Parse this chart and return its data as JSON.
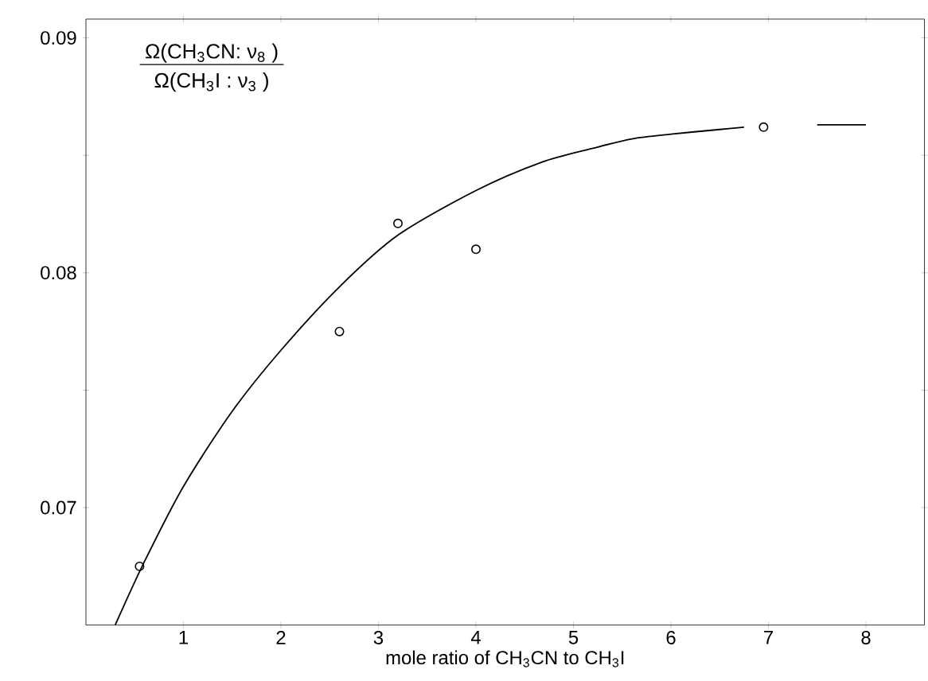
{
  "chart_data": {
    "type": "scatter",
    "xlabel": "mole ratio of CH$_{3}$CN to CH$_{3}$I",
    "annotations": [
      "Ω(CH$_{3}$CN: ν$_{8}$ )",
      "Ω(CH$_{3}$I : ν$_{3}$ )"
    ],
    "xlim": [
      0,
      8.6
    ],
    "ylim": [
      0.065,
      0.0908
    ],
    "xticks": [
      1,
      2,
      3,
      4,
      5,
      6,
      7,
      8
    ],
    "yticks": [
      0.07,
      {
        "value": 0.075,
        "label": null
      },
      0.08,
      {
        "value": 0.085,
        "label": null
      },
      0.09
    ],
    "series": [
      {
        "color": "#000000",
        "marker": "circle",
        "x": [
          0.55,
          2.6,
          3.2,
          4.0,
          6.95
        ],
        "values": [
          0.0675,
          0.0775,
          0.0821,
          0.081,
          0.0862
        ]
      },
      {
        "type": "line",
        "color": "#000000",
        "marker": "none",
        "x": [
          0.3,
          0.6,
          1.0,
          1.5,
          2.0,
          2.6,
          3.2,
          4.0,
          4.67,
          5.2,
          5.6,
          6.0,
          6.5,
          6.75,
          7.15,
          7.5,
          8.0
        ],
        "values": [
          0.065,
          0.0677,
          0.0709,
          0.0741,
          0.0767,
          0.0794,
          0.0816,
          0.0835,
          0.0847,
          0.0853,
          0.0857,
          0.0859,
          0.0861,
          0.0862,
          null,
          0.0863,
          0.0863
        ]
      }
    ]
  }
}
